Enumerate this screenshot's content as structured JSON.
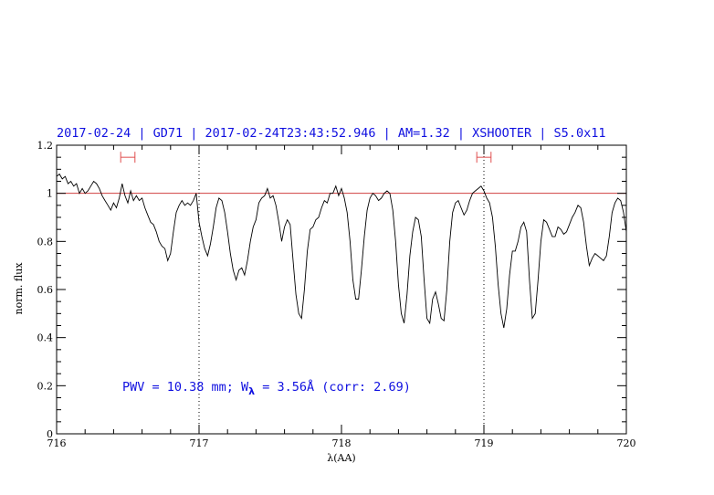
{
  "chart_data": {
    "type": "line",
    "title": "2017-02-24 | GD71 | 2017-02-24T23:43:52.946 | AM=1.32 | XSHOOTER | S5.0x11",
    "xlabel": "λ(AA)",
    "ylabel": "norm. flux",
    "xlim": [
      716,
      720
    ],
    "ylim": [
      0,
      1.2
    ],
    "x_ticks": [
      "716",
      "717",
      "718",
      "719",
      "720"
    ],
    "y_ticks": [
      "0",
      "0.2",
      "0.4",
      "0.6",
      "0.8",
      "1",
      "1.2"
    ],
    "reference_line": {
      "y": 1.0,
      "color": "#d04040"
    },
    "vertical_markers": [
      717.0,
      719.0
    ],
    "intervals": [
      {
        "x": [
          716.45,
          716.55
        ],
        "y": 1.15,
        "color": "#e05050"
      },
      {
        "x": [
          718.95,
          719.05
        ],
        "y": 1.15,
        "color": "#e05050"
      }
    ],
    "annotation": {
      "text_before": "PWV  =  10.38  mm;  W",
      "subscript": "λ",
      "text_after": "  =  3.56Å  (corr:  2.69)",
      "color": "#1010e0"
    },
    "title_color": "#1010e0",
    "series": [
      {
        "color": "#000000",
        "points": [
          [
            716.0,
            1.07
          ],
          [
            716.02,
            1.08
          ],
          [
            716.04,
            1.06
          ],
          [
            716.06,
            1.07
          ],
          [
            716.08,
            1.04
          ],
          [
            716.1,
            1.05
          ],
          [
            716.12,
            1.03
          ],
          [
            716.14,
            1.04
          ],
          [
            716.16,
            1.0
          ],
          [
            716.18,
            1.02
          ],
          [
            716.2,
            1.0
          ],
          [
            716.22,
            1.01
          ],
          [
            716.24,
            1.03
          ],
          [
            716.26,
            1.05
          ],
          [
            716.28,
            1.04
          ],
          [
            716.3,
            1.02
          ],
          [
            716.32,
            0.99
          ],
          [
            716.34,
            0.97
          ],
          [
            716.36,
            0.95
          ],
          [
            716.38,
            0.93
          ],
          [
            716.4,
            0.96
          ],
          [
            716.42,
            0.94
          ],
          [
            716.44,
            0.98
          ],
          [
            716.46,
            1.04
          ],
          [
            716.48,
            0.99
          ],
          [
            716.5,
            0.96
          ],
          [
            716.52,
            1.01
          ],
          [
            716.54,
            0.97
          ],
          [
            716.56,
            0.99
          ],
          [
            716.58,
            0.97
          ],
          [
            716.6,
            0.98
          ],
          [
            716.62,
            0.94
          ],
          [
            716.64,
            0.91
          ],
          [
            716.66,
            0.88
          ],
          [
            716.68,
            0.87
          ],
          [
            716.7,
            0.84
          ],
          [
            716.72,
            0.8
          ],
          [
            716.74,
            0.78
          ],
          [
            716.76,
            0.77
          ],
          [
            716.78,
            0.72
          ],
          [
            716.8,
            0.75
          ],
          [
            716.82,
            0.84
          ],
          [
            716.84,
            0.92
          ],
          [
            716.86,
            0.95
          ],
          [
            716.88,
            0.97
          ],
          [
            716.9,
            0.95
          ],
          [
            716.92,
            0.96
          ],
          [
            716.94,
            0.95
          ],
          [
            716.96,
            0.97
          ],
          [
            716.98,
            1.0
          ],
          [
            717.0,
            0.88
          ],
          [
            717.02,
            0.82
          ],
          [
            717.04,
            0.77
          ],
          [
            717.06,
            0.74
          ],
          [
            717.08,
            0.79
          ],
          [
            717.1,
            0.86
          ],
          [
            717.12,
            0.94
          ],
          [
            717.14,
            0.98
          ],
          [
            717.16,
            0.97
          ],
          [
            717.18,
            0.92
          ],
          [
            717.2,
            0.84
          ],
          [
            717.22,
            0.75
          ],
          [
            717.24,
            0.68
          ],
          [
            717.26,
            0.64
          ],
          [
            717.28,
            0.68
          ],
          [
            717.3,
            0.69
          ],
          [
            717.32,
            0.66
          ],
          [
            717.34,
            0.72
          ],
          [
            717.36,
            0.8
          ],
          [
            717.38,
            0.86
          ],
          [
            717.4,
            0.89
          ],
          [
            717.42,
            0.96
          ],
          [
            717.44,
            0.98
          ],
          [
            717.46,
            0.99
          ],
          [
            717.48,
            1.02
          ],
          [
            717.5,
            0.98
          ],
          [
            717.52,
            0.99
          ],
          [
            717.54,
            0.95
          ],
          [
            717.56,
            0.88
          ],
          [
            717.58,
            0.8
          ],
          [
            717.6,
            0.86
          ],
          [
            717.62,
            0.89
          ],
          [
            717.64,
            0.87
          ],
          [
            717.66,
            0.72
          ],
          [
            717.68,
            0.58
          ],
          [
            717.7,
            0.5
          ],
          [
            717.72,
            0.48
          ],
          [
            717.74,
            0.6
          ],
          [
            717.76,
            0.76
          ],
          [
            717.78,
            0.85
          ],
          [
            717.8,
            0.86
          ],
          [
            717.82,
            0.89
          ],
          [
            717.84,
            0.9
          ],
          [
            717.86,
            0.94
          ],
          [
            717.88,
            0.97
          ],
          [
            717.9,
            0.96
          ],
          [
            717.92,
            1.0
          ],
          [
            717.94,
            1.0
          ],
          [
            717.96,
            1.03
          ],
          [
            717.98,
            0.99
          ],
          [
            718.0,
            1.02
          ],
          [
            718.02,
            0.98
          ],
          [
            718.04,
            0.92
          ],
          [
            718.06,
            0.8
          ],
          [
            718.08,
            0.64
          ],
          [
            718.1,
            0.56
          ],
          [
            718.12,
            0.56
          ],
          [
            718.14,
            0.68
          ],
          [
            718.16,
            0.82
          ],
          [
            718.18,
            0.93
          ],
          [
            718.2,
            0.98
          ],
          [
            718.22,
            1.0
          ],
          [
            718.24,
            0.99
          ],
          [
            718.26,
            0.97
          ],
          [
            718.28,
            0.98
          ],
          [
            718.3,
            1.0
          ],
          [
            718.32,
            1.01
          ],
          [
            718.34,
            1.0
          ],
          [
            718.36,
            0.93
          ],
          [
            718.38,
            0.8
          ],
          [
            718.4,
            0.62
          ],
          [
            718.42,
            0.5
          ],
          [
            718.44,
            0.46
          ],
          [
            718.46,
            0.58
          ],
          [
            718.48,
            0.74
          ],
          [
            718.5,
            0.84
          ],
          [
            718.52,
            0.9
          ],
          [
            718.54,
            0.89
          ],
          [
            718.56,
            0.82
          ],
          [
            718.58,
            0.64
          ],
          [
            718.6,
            0.48
          ],
          [
            718.62,
            0.46
          ],
          [
            718.64,
            0.56
          ],
          [
            718.66,
            0.59
          ],
          [
            718.68,
            0.54
          ],
          [
            718.7,
            0.48
          ],
          [
            718.72,
            0.47
          ],
          [
            718.74,
            0.6
          ],
          [
            718.76,
            0.8
          ],
          [
            718.78,
            0.92
          ],
          [
            718.8,
            0.96
          ],
          [
            718.82,
            0.97
          ],
          [
            718.84,
            0.94
          ],
          [
            718.86,
            0.91
          ],
          [
            718.88,
            0.93
          ],
          [
            718.9,
            0.97
          ],
          [
            718.92,
            1.0
          ],
          [
            718.94,
            1.01
          ],
          [
            718.96,
            1.02
          ],
          [
            718.98,
            1.03
          ],
          [
            719.0,
            1.01
          ],
          [
            719.02,
            0.98
          ],
          [
            719.04,
            0.96
          ],
          [
            719.06,
            0.9
          ],
          [
            719.08,
            0.78
          ],
          [
            719.1,
            0.62
          ],
          [
            719.12,
            0.5
          ],
          [
            719.14,
            0.44
          ],
          [
            719.16,
            0.52
          ],
          [
            719.18,
            0.66
          ],
          [
            719.2,
            0.76
          ],
          [
            719.22,
            0.76
          ],
          [
            719.24,
            0.8
          ],
          [
            719.26,
            0.86
          ],
          [
            719.28,
            0.88
          ],
          [
            719.3,
            0.84
          ],
          [
            719.32,
            0.64
          ],
          [
            719.34,
            0.48
          ],
          [
            719.36,
            0.5
          ],
          [
            719.38,
            0.64
          ],
          [
            719.4,
            0.8
          ],
          [
            719.42,
            0.89
          ],
          [
            719.44,
            0.88
          ],
          [
            719.46,
            0.85
          ],
          [
            719.48,
            0.82
          ],
          [
            719.5,
            0.82
          ],
          [
            719.52,
            0.86
          ],
          [
            719.54,
            0.85
          ],
          [
            719.56,
            0.83
          ],
          [
            719.58,
            0.84
          ],
          [
            719.6,
            0.87
          ],
          [
            719.62,
            0.9
          ],
          [
            719.64,
            0.92
          ],
          [
            719.66,
            0.95
          ],
          [
            719.68,
            0.94
          ],
          [
            719.7,
            0.88
          ],
          [
            719.72,
            0.78
          ],
          [
            719.74,
            0.7
          ],
          [
            719.76,
            0.73
          ],
          [
            719.78,
            0.75
          ],
          [
            719.8,
            0.74
          ],
          [
            719.82,
            0.73
          ],
          [
            719.84,
            0.72
          ],
          [
            719.86,
            0.74
          ],
          [
            719.88,
            0.82
          ],
          [
            719.9,
            0.92
          ],
          [
            719.92,
            0.96
          ],
          [
            719.94,
            0.98
          ],
          [
            719.96,
            0.97
          ],
          [
            719.98,
            0.92
          ],
          [
            720.0,
            0.84
          ]
        ]
      }
    ]
  }
}
